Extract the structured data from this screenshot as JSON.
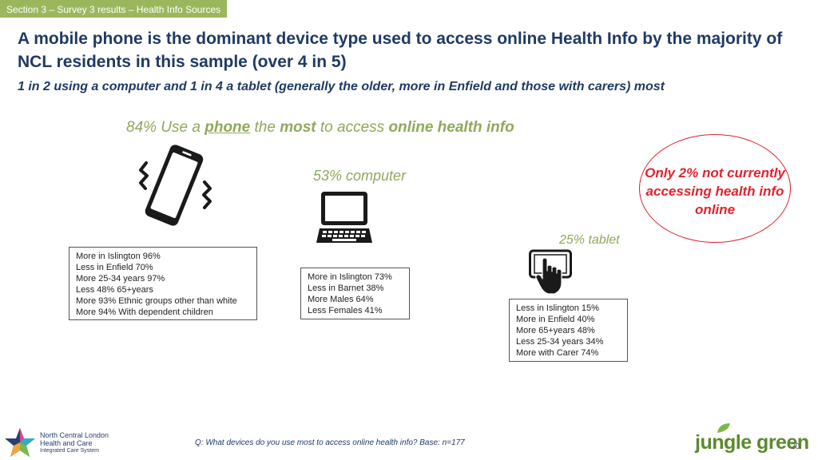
{
  "section_tag": "Section 3 – Survey 3 results – Health Info Sources",
  "title": "A mobile phone is the dominant device type used to access online Health Info by the majority of NCL residents in this sample (over 4 in 5)",
  "subtitle": "1 in 2 using a computer and 1 in 4 a tablet (generally the older, more in Enfield and those with carers) most",
  "headline": {
    "part1": "84% Use a ",
    "phone": "phone",
    "part2": " the ",
    "most": "most",
    "part3": " to access ",
    "online": "online health info"
  },
  "computer_label": "53% computer",
  "tablet_label": "25% tablet",
  "callout": "Only 2% not currently accessing health info online",
  "phone_box": [
    "More in Islington 96%",
    "Less in Enfield 70%",
    "More 25-34 years 97%",
    "Less 48% 65+years",
    "More 93% Ethnic groups other than white",
    "More 94% With dependent children"
  ],
  "computer_box": [
    "More in Islington 73%",
    "Less in Barnet 38%",
    "More Males 64%",
    "Less Females 41%"
  ],
  "tablet_box": [
    "Less in Islington 15%",
    "More in Enfield 40%",
    "More 65+years 48%",
    "Less 25-34 years 34%",
    "More with Carer 74%"
  ],
  "icons": {
    "phone": "vibrating-phone-icon",
    "computer": "laptop-icon",
    "tablet": "tablet-touch-icon"
  },
  "footer_question": "Q: What devices do you use most to access online health info? Base: n=177",
  "logo_left": {
    "line1": "North Central London",
    "line2": "Health and Care",
    "line3": "Integrated Care System"
  },
  "logo_right": "jungle green",
  "page_number": "20",
  "colors": {
    "tag_bg": "#9bb75e",
    "title": "#1f3a63",
    "accent_green": "#8ea95a",
    "callout_red": "#e1232e"
  }
}
